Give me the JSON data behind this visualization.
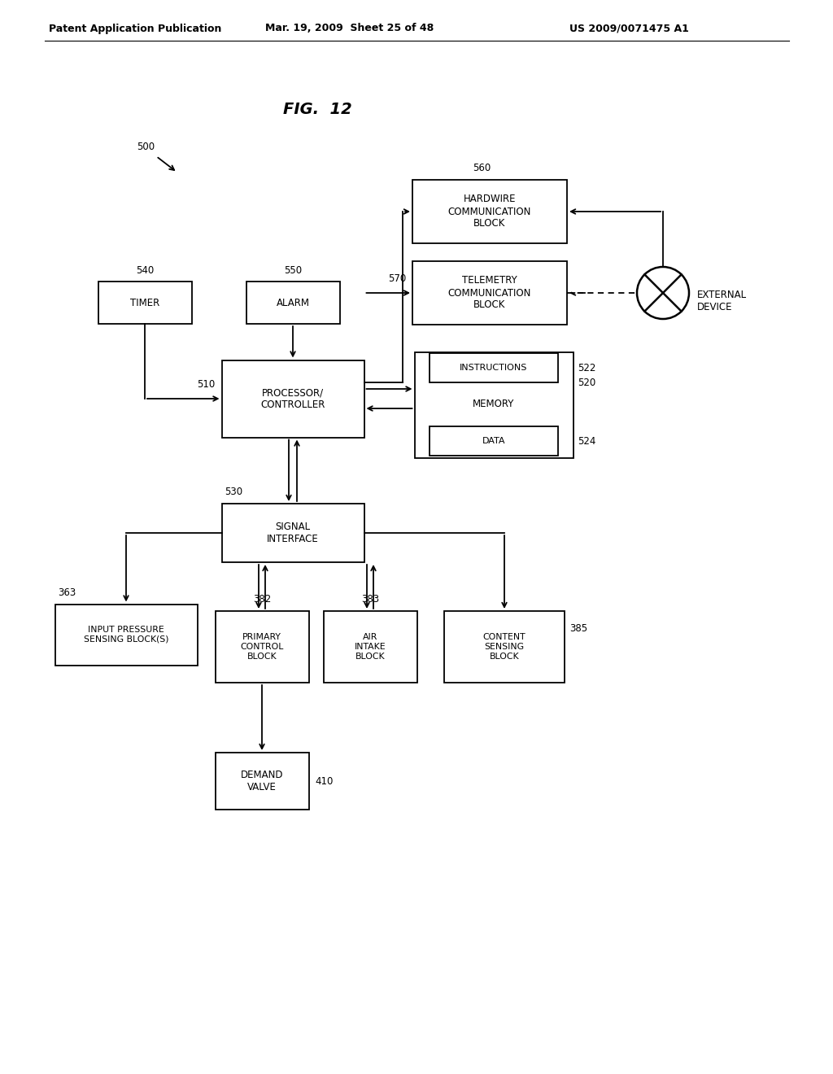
{
  "header_left": "Patent Application Publication",
  "header_center": "Mar. 19, 2009  Sheet 25 of 48",
  "header_right": "US 2009/0071475 A1",
  "fig_title": "FIG.  12",
  "bg_color": "#ffffff"
}
